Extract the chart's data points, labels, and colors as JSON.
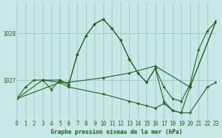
{
  "title": "Graphe pression niveau de la mer (hPa)",
  "bg_color": "#c8e8e8",
  "grid_color": "#a0c8c8",
  "line_color": "#1a5c1a",
  "series": [
    {
      "x": [
        0,
        1,
        2,
        3,
        4,
        5,
        6,
        7,
        8,
        9,
        10,
        11,
        12,
        13,
        14,
        15,
        16,
        17,
        18,
        19,
        20,
        21,
        22,
        23
      ],
      "y": [
        1026.6,
        1026.85,
        1027.0,
        1027.0,
        1026.8,
        1027.0,
        1026.9,
        1027.55,
        1027.95,
        1028.2,
        1028.3,
        1028.1,
        1027.85,
        1027.45,
        1027.15,
        1026.95,
        1027.25,
        1026.85,
        1026.6,
        1026.55,
        1026.9,
        1027.65,
        1028.05,
        1028.25
      ]
    },
    {
      "x": [
        0,
        5,
        6,
        10,
        13,
        16,
        20,
        23
      ],
      "y": [
        1026.6,
        1026.95,
        1026.95,
        1027.05,
        1027.15,
        1027.3,
        1026.85,
        1028.25
      ]
    },
    {
      "x": [
        0,
        3,
        5,
        6,
        10,
        13,
        14,
        15,
        16,
        17,
        18,
        19,
        20,
        22,
        23
      ],
      "y": [
        1026.6,
        1027.0,
        1026.95,
        1026.85,
        1026.7,
        1026.55,
        1026.5,
        1026.45,
        1026.4,
        1026.5,
        1026.35,
        1026.3,
        1026.3,
        1026.85,
        1026.95
      ]
    },
    {
      "x": [
        3,
        5,
        6,
        7,
        8,
        9,
        10,
        11,
        12,
        13,
        14,
        15,
        16,
        17,
        18,
        19,
        20,
        23
      ],
      "y": [
        1027.0,
        1027.0,
        1026.9,
        1027.55,
        1027.95,
        1028.2,
        1028.3,
        1028.1,
        1027.85,
        1027.45,
        1027.15,
        1026.95,
        1027.25,
        1026.55,
        1026.35,
        1026.3,
        1026.85,
        1028.25
      ]
    }
  ],
  "yticks": [
    1027,
    1028
  ],
  "ylim": [
    1026.15,
    1028.65
  ],
  "xlim": [
    0,
    23
  ],
  "xticks": [
    0,
    1,
    2,
    3,
    4,
    5,
    6,
    7,
    8,
    9,
    10,
    11,
    12,
    13,
    14,
    15,
    16,
    17,
    18,
    19,
    20,
    21,
    22,
    23
  ],
  "tick_fontsize": 5.5,
  "xlabel_fontsize": 6.0
}
